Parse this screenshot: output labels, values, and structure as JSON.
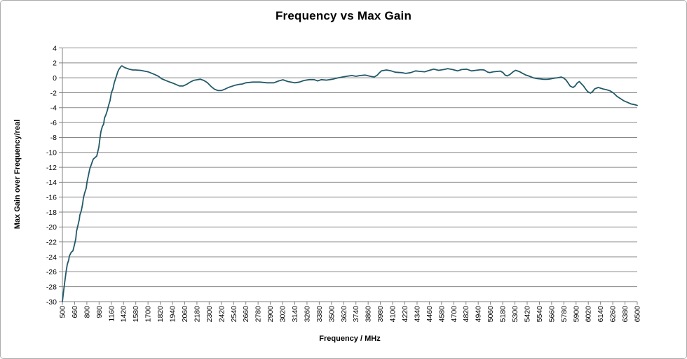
{
  "chart": {
    "title": "Frequency vs Max Gain",
    "x_axis_title": "Frequency / MHz",
    "y_axis_title": "Max Gain over Frequency/real"
  },
  "colors": {
    "background": "#ffffff",
    "frame_border": "#ababab",
    "gridline": "#878787",
    "axis_line": "#808080",
    "tick_label": "#000000",
    "series_line": "#215968"
  },
  "chart_data": {
    "type": "line",
    "title": "Frequency vs Max Gain",
    "xlabel": "Frequency / MHz",
    "ylabel": "Max Gain over Frequency/real",
    "ylim": [
      -30,
      4
    ],
    "y_tick_step": 2,
    "y_tick_labels": [
      4,
      2,
      0,
      -2,
      -4,
      -6,
      -8,
      -10,
      -12,
      -14,
      -16,
      -18,
      -20,
      -22,
      -24,
      -26,
      -28,
      -30
    ],
    "x_tick_labels": [
      500,
      660,
      800,
      980,
      1160,
      1420,
      1580,
      1700,
      1820,
      1940,
      2060,
      2180,
      2300,
      2420,
      2540,
      2660,
      2780,
      2900,
      3020,
      3140,
      3260,
      3380,
      3500,
      3620,
      3740,
      3860,
      3980,
      4100,
      4220,
      4340,
      4460,
      4580,
      4700,
      4820,
      4940,
      5060,
      5180,
      5300,
      5420,
      5540,
      5660,
      5780,
      5900,
      6020,
      6140,
      6260,
      6380,
      6500
    ],
    "grid": true,
    "legend": false,
    "series": [
      {
        "name": "Max Gain",
        "points": [
          [
            500,
            -30
          ],
          [
            518,
            -28.4
          ],
          [
            537,
            -26.9
          ],
          [
            551,
            -25.8
          ],
          [
            564,
            -25
          ],
          [
            583,
            -24.4
          ],
          [
            591,
            -23.9
          ],
          [
            615,
            -23.4
          ],
          [
            638,
            -23.2
          ],
          [
            655,
            -22.5
          ],
          [
            673,
            -21.6
          ],
          [
            681,
            -20.6
          ],
          [
            696,
            -19.9
          ],
          [
            713,
            -19
          ],
          [
            720,
            -18.4
          ],
          [
            737,
            -17.8
          ],
          [
            752,
            -16.9
          ],
          [
            761,
            -16.1
          ],
          [
            776,
            -15.4
          ],
          [
            793,
            -14.8
          ],
          [
            802,
            -14
          ],
          [
            843,
            -12.2
          ],
          [
            894,
            -10.9
          ],
          [
            946,
            -10.5
          ],
          [
            977,
            -9.3
          ],
          [
            996,
            -7.9
          ],
          [
            1007,
            -7.2
          ],
          [
            1029,
            -6.5
          ],
          [
            1048,
            -6.2
          ],
          [
            1059,
            -5.4
          ],
          [
            1079,
            -5
          ],
          [
            1100,
            -4.4
          ],
          [
            1120,
            -3.7
          ],
          [
            1142,
            -3.05
          ],
          [
            1162,
            -2
          ],
          [
            1194,
            -1.5
          ],
          [
            1222,
            -0.7
          ],
          [
            1267,
            0.2
          ],
          [
            1298,
            0.8
          ],
          [
            1319,
            1.1
          ],
          [
            1371,
            1.55
          ],
          [
            1386,
            1.6
          ],
          [
            1436,
            1.36
          ],
          [
            1490,
            1.17
          ],
          [
            1540,
            1.05
          ],
          [
            1580,
            1.05
          ],
          [
            1630,
            0.99
          ],
          [
            1700,
            0.8
          ],
          [
            1769,
            0.42
          ],
          [
            1803,
            0.19
          ],
          [
            1834,
            -0.14
          ],
          [
            1903,
            -0.52
          ],
          [
            1940,
            -0.7
          ],
          [
            1974,
            -0.9
          ],
          [
            2009,
            -1.1
          ],
          [
            2043,
            -1.1
          ],
          [
            2077,
            -0.9
          ],
          [
            2112,
            -0.6
          ],
          [
            2146,
            -0.35
          ],
          [
            2180,
            -0.27
          ],
          [
            2214,
            -0.19
          ],
          [
            2249,
            -0.36
          ],
          [
            2283,
            -0.67
          ],
          [
            2317,
            -1.14
          ],
          [
            2352,
            -1.52
          ],
          [
            2386,
            -1.71
          ],
          [
            2420,
            -1.71
          ],
          [
            2454,
            -1.52
          ],
          [
            2489,
            -1.3
          ],
          [
            2523,
            -1.14
          ],
          [
            2557,
            -0.99
          ],
          [
            2592,
            -0.89
          ],
          [
            2626,
            -0.83
          ],
          [
            2660,
            -0.67
          ],
          [
            2729,
            -0.58
          ],
          [
            2798,
            -0.58
          ],
          [
            2866,
            -0.67
          ],
          [
            2935,
            -0.67
          ],
          [
            2983,
            -0.42
          ],
          [
            3024,
            -0.27
          ],
          [
            3072,
            -0.5
          ],
          [
            3140,
            -0.67
          ],
          [
            3185,
            -0.58
          ],
          [
            3230,
            -0.36
          ],
          [
            3282,
            -0.25
          ],
          [
            3330,
            -0.25
          ],
          [
            3365,
            -0.42
          ],
          [
            3400,
            -0.25
          ],
          [
            3450,
            -0.31
          ],
          [
            3510,
            -0.19
          ],
          [
            3560,
            -0.02
          ],
          [
            3610,
            0.11
          ],
          [
            3650,
            0.2
          ],
          [
            3700,
            0.3
          ],
          [
            3740,
            0.2
          ],
          [
            3785,
            0.3
          ],
          [
            3830,
            0.36
          ],
          [
            3880,
            0.2
          ],
          [
            3920,
            0.11
          ],
          [
            3950,
            0.36
          ],
          [
            3970,
            0.67
          ],
          [
            3990,
            0.92
          ],
          [
            4040,
            1.05
          ],
          [
            4086,
            0.92
          ],
          [
            4126,
            0.75
          ],
          [
            4188,
            0.69
          ],
          [
            4229,
            0.59
          ],
          [
            4277,
            0.69
          ],
          [
            4325,
            0.92
          ],
          [
            4366,
            0.86
          ],
          [
            4414,
            0.8
          ],
          [
            4462,
            1.0
          ],
          [
            4503,
            1.16
          ],
          [
            4551,
            1.0
          ],
          [
            4600,
            1.1
          ],
          [
            4641,
            1.22
          ],
          [
            4689,
            1.1
          ],
          [
            4737,
            0.92
          ],
          [
            4778,
            1.1
          ],
          [
            4826,
            1.16
          ],
          [
            4874,
            0.92
          ],
          [
            4916,
            1.0
          ],
          [
            4964,
            1.08
          ],
          [
            4998,
            1.05
          ],
          [
            5032,
            0.76
          ],
          [
            5053,
            0.7
          ],
          [
            5087,
            0.8
          ],
          [
            5122,
            0.85
          ],
          [
            5156,
            0.9
          ],
          [
            5183,
            0.7
          ],
          [
            5204,
            0.35
          ],
          [
            5225,
            0.25
          ],
          [
            5252,
            0.45
          ],
          [
            5287,
            0.85
          ],
          [
            5307,
            1.0
          ],
          [
            5341,
            0.85
          ],
          [
            5375,
            0.6
          ],
          [
            5410,
            0.35
          ],
          [
            5444,
            0.2
          ],
          [
            5478,
            0
          ],
          [
            5513,
            -0.1
          ],
          [
            5547,
            -0.15
          ],
          [
            5581,
            -0.2
          ],
          [
            5616,
            -0.2
          ],
          [
            5650,
            -0.15
          ],
          [
            5684,
            -0.05
          ],
          [
            5719,
            0
          ],
          [
            5753,
            0.1
          ],
          [
            5774,
            0
          ],
          [
            5801,
            -0.3
          ],
          [
            5822,
            -0.7
          ],
          [
            5842,
            -1.1
          ],
          [
            5870,
            -1.3
          ],
          [
            5890,
            -1.1
          ],
          [
            5911,
            -0.7
          ],
          [
            5932,
            -0.5
          ],
          [
            5945,
            -0.7
          ],
          [
            5973,
            -1.1
          ],
          [
            5993,
            -1.5
          ],
          [
            6014,
            -1.85
          ],
          [
            6041,
            -2.05
          ],
          [
            6062,
            -1.85
          ],
          [
            6082,
            -1.5
          ],
          [
            6117,
            -1.3
          ],
          [
            6130,
            -1.35
          ],
          [
            6165,
            -1.5
          ],
          [
            6199,
            -1.6
          ],
          [
            6233,
            -1.75
          ],
          [
            6268,
            -2.05
          ],
          [
            6302,
            -2.5
          ],
          [
            6336,
            -2.8
          ],
          [
            6371,
            -3.1
          ],
          [
            6405,
            -3.3
          ],
          [
            6439,
            -3.5
          ],
          [
            6474,
            -3.6
          ],
          [
            6500,
            -3.7
          ]
        ]
      }
    ]
  }
}
